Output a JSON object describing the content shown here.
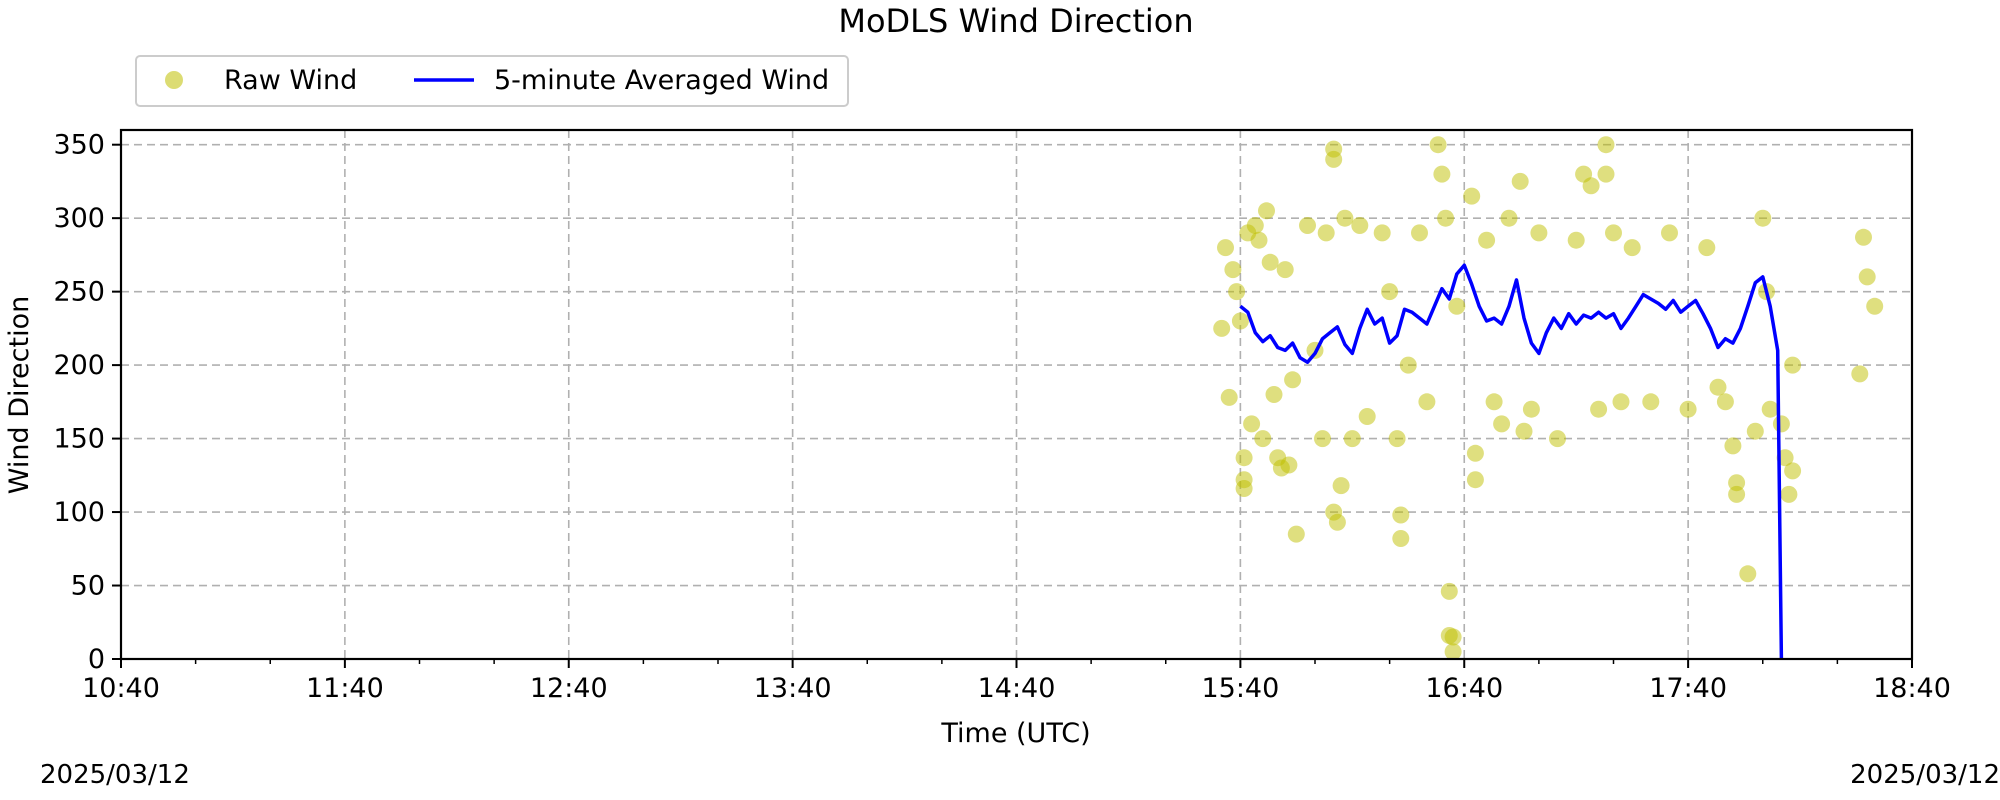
{
  "chart_data": {
    "type": "scatter",
    "title": "MoDLS Wind Direction",
    "xlabel": "Time (UTC)",
    "ylabel": "Wind Direction",
    "date_left": "2025/03/12",
    "date_right": "2025/03/12",
    "x_tick_labels": [
      "10:40",
      "11:40",
      "12:40",
      "13:40",
      "14:40",
      "15:40",
      "16:40",
      "17:40",
      "18:40"
    ],
    "y_tick_labels": [
      "0",
      "50",
      "100",
      "150",
      "200",
      "250",
      "300",
      "350"
    ],
    "xlim": [
      "10:40",
      "18:40"
    ],
    "ylim": [
      0,
      360
    ],
    "grid": true,
    "legend_position": "top-left, above plot",
    "series": [
      {
        "name": "Raw Wind",
        "kind": "scatter",
        "color": "#bfbf00",
        "samples": [
          [
            "15:35",
            225
          ],
          [
            "15:36",
            280
          ],
          [
            "15:37",
            178
          ],
          [
            "15:38",
            265
          ],
          [
            "15:39",
            250
          ],
          [
            "15:40",
            230
          ],
          [
            "15:41",
            137
          ],
          [
            "15:41",
            122
          ],
          [
            "15:41",
            116
          ],
          [
            "15:42",
            290
          ],
          [
            "15:43",
            160
          ],
          [
            "15:44",
            295
          ],
          [
            "15:45",
            285
          ],
          [
            "15:46",
            150
          ],
          [
            "15:47",
            305
          ],
          [
            "15:48",
            270
          ],
          [
            "15:49",
            180
          ],
          [
            "15:50",
            137
          ],
          [
            "15:51",
            130
          ],
          [
            "15:52",
            265
          ],
          [
            "15:53",
            132
          ],
          [
            "15:54",
            190
          ],
          [
            "15:55",
            85
          ],
          [
            "15:58",
            295
          ],
          [
            "16:00",
            210
          ],
          [
            "16:02",
            150
          ],
          [
            "16:03",
            290
          ],
          [
            "16:05",
            100
          ],
          [
            "16:05",
            340
          ],
          [
            "16:05",
            347
          ],
          [
            "16:06",
            93
          ],
          [
            "16:07",
            118
          ],
          [
            "16:08",
            300
          ],
          [
            "16:10",
            150
          ],
          [
            "16:12",
            295
          ],
          [
            "16:14",
            165
          ],
          [
            "16:18",
            290
          ],
          [
            "16:20",
            250
          ],
          [
            "16:22",
            150
          ],
          [
            "16:23",
            98
          ],
          [
            "16:23",
            82
          ],
          [
            "16:25",
            200
          ],
          [
            "16:28",
            290
          ],
          [
            "16:30",
            175
          ],
          [
            "16:33",
            350
          ],
          [
            "16:34",
            330
          ],
          [
            "16:35",
            300
          ],
          [
            "16:36",
            46
          ],
          [
            "16:36",
            16
          ],
          [
            "16:37",
            5
          ],
          [
            "16:37",
            15
          ],
          [
            "16:38",
            240
          ],
          [
            "16:42",
            315
          ],
          [
            "16:43",
            122
          ],
          [
            "16:43",
            140
          ],
          [
            "16:46",
            285
          ],
          [
            "16:48",
            175
          ],
          [
            "16:50",
            160
          ],
          [
            "16:52",
            300
          ],
          [
            "16:55",
            325
          ],
          [
            "16:56",
            155
          ],
          [
            "16:58",
            170
          ],
          [
            "17:00",
            290
          ],
          [
            "17:05",
            150
          ],
          [
            "17:10",
            285
          ],
          [
            "17:12",
            330
          ],
          [
            "17:14",
            322
          ],
          [
            "17:16",
            170
          ],
          [
            "17:18",
            350
          ],
          [
            "17:18",
            330
          ],
          [
            "17:20",
            290
          ],
          [
            "17:22",
            175
          ],
          [
            "17:25",
            280
          ],
          [
            "17:30",
            175
          ],
          [
            "17:35",
            290
          ],
          [
            "17:40",
            170
          ],
          [
            "17:45",
            280
          ],
          [
            "17:48",
            185
          ],
          [
            "17:50",
            175
          ],
          [
            "17:52",
            145
          ],
          [
            "17:53",
            112
          ],
          [
            "17:53",
            120
          ],
          [
            "17:56",
            58
          ],
          [
            "17:58",
            155
          ],
          [
            "18:00",
            300
          ],
          [
            "18:01",
            250
          ],
          [
            "18:02",
            170
          ],
          [
            "18:05",
            160
          ],
          [
            "18:06",
            137
          ],
          [
            "18:07",
            112
          ],
          [
            "18:08",
            128
          ],
          [
            "18:08",
            200
          ],
          [
            "18:26",
            194
          ],
          [
            "18:27",
            287
          ],
          [
            "18:28",
            260
          ],
          [
            "18:30",
            240
          ]
        ]
      },
      {
        "name": "5-minute Averaged Wind",
        "kind": "line",
        "color": "#0000ff",
        "points": [
          [
            "15:40",
            240
          ],
          [
            "15:42",
            236
          ],
          [
            "15:44",
            222
          ],
          [
            "15:46",
            216
          ],
          [
            "15:48",
            220
          ],
          [
            "15:50",
            212
          ],
          [
            "15:52",
            210
          ],
          [
            "15:54",
            215
          ],
          [
            "15:56",
            205
          ],
          [
            "15:58",
            202
          ],
          [
            "16:00",
            208
          ],
          [
            "16:02",
            218
          ],
          [
            "16:04",
            222
          ],
          [
            "16:06",
            226
          ],
          [
            "16:08",
            214
          ],
          [
            "16:10",
            208
          ],
          [
            "16:12",
            225
          ],
          [
            "16:14",
            238
          ],
          [
            "16:16",
            228
          ],
          [
            "16:18",
            232
          ],
          [
            "16:20",
            215
          ],
          [
            "16:22",
            220
          ],
          [
            "16:24",
            238
          ],
          [
            "16:26",
            236
          ],
          [
            "16:28",
            232
          ],
          [
            "16:30",
            228
          ],
          [
            "16:32",
            240
          ],
          [
            "16:34",
            252
          ],
          [
            "16:36",
            245
          ],
          [
            "16:38",
            262
          ],
          [
            "16:40",
            268
          ],
          [
            "16:42",
            255
          ],
          [
            "16:44",
            240
          ],
          [
            "16:46",
            230
          ],
          [
            "16:48",
            232
          ],
          [
            "16:50",
            228
          ],
          [
            "16:52",
            240
          ],
          [
            "16:54",
            258
          ],
          [
            "16:56",
            232
          ],
          [
            "16:58",
            215
          ],
          [
            "17:00",
            208
          ],
          [
            "17:02",
            222
          ],
          [
            "17:04",
            232
          ],
          [
            "17:06",
            225
          ],
          [
            "17:08",
            235
          ],
          [
            "17:10",
            228
          ],
          [
            "17:12",
            234
          ],
          [
            "17:14",
            232
          ],
          [
            "17:16",
            236
          ],
          [
            "17:18",
            232
          ],
          [
            "17:20",
            235
          ],
          [
            "17:22",
            225
          ],
          [
            "17:24",
            232
          ],
          [
            "17:26",
            240
          ],
          [
            "17:28",
            248
          ],
          [
            "17:30",
            245
          ],
          [
            "17:32",
            242
          ],
          [
            "17:34",
            238
          ],
          [
            "17:36",
            244
          ],
          [
            "17:38",
            236
          ],
          [
            "17:40",
            240
          ],
          [
            "17:42",
            244
          ],
          [
            "17:44",
            235
          ],
          [
            "17:46",
            225
          ],
          [
            "17:48",
            212
          ],
          [
            "17:50",
            218
          ],
          [
            "17:52",
            215
          ],
          [
            "17:54",
            225
          ],
          [
            "17:56",
            240
          ],
          [
            "17:58",
            256
          ],
          [
            "18:00",
            260
          ],
          [
            "18:02",
            240
          ],
          [
            "18:04",
            210
          ],
          [
            "18:05",
            0
          ]
        ]
      }
    ]
  }
}
